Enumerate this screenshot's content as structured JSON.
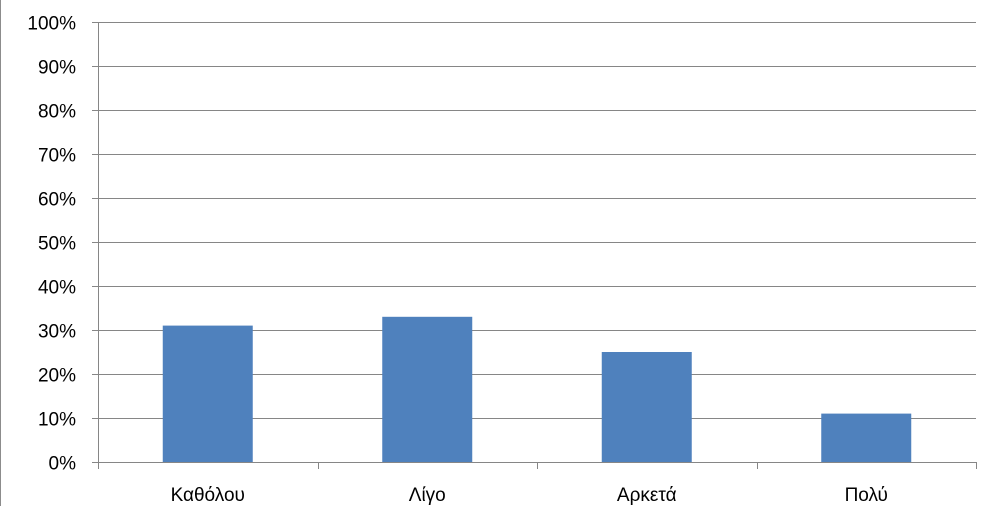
{
  "chart_data": {
    "type": "bar",
    "title": "",
    "xlabel": "",
    "ylabel": "",
    "categories": [
      "Καθόλου",
      "Λίγο",
      "Αρκετά",
      "Πολύ"
    ],
    "series": [
      {
        "values": [
          31,
          33,
          25,
          11
        ],
        "color": "#4f81bd"
      }
    ],
    "ylim": [
      0,
      100
    ],
    "yticks": [
      0,
      10,
      20,
      30,
      40,
      50,
      60,
      70,
      80,
      90,
      100
    ],
    "ytick_labels": [
      "0%",
      "10%",
      "20%",
      "30%",
      "40%",
      "50%",
      "60%",
      "70%",
      "80%",
      "90%",
      "100%"
    ],
    "grid": true,
    "legend": "none"
  }
}
